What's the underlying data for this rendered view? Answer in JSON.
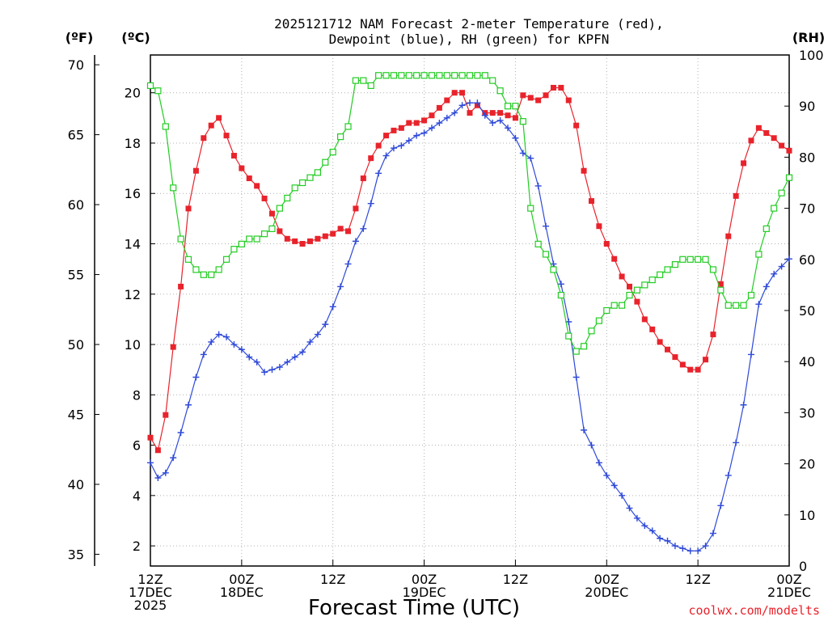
{
  "chart_data": {
    "type": "line",
    "title_line1": "2025121712 NAM Forecast 2-meter Temperature (red),",
    "title_line2": "Dewpoint (blue), RH (green) for KPFN",
    "xlabel": "Forecast Time (UTC)",
    "credit": "coolwx.com/modelts",
    "units": {
      "fahrenheit": "(ºF)",
      "celsius": "(ºC)",
      "rh": "(RH)"
    },
    "x_ticks": [
      {
        "hour": 0,
        "lines": [
          "12Z",
          "17DEC",
          "2025"
        ]
      },
      {
        "hour": 12,
        "lines": [
          "00Z",
          "18DEC"
        ]
      },
      {
        "hour": 24,
        "lines": [
          "12Z"
        ]
      },
      {
        "hour": 36,
        "lines": [
          "00Z",
          "19DEC"
        ]
      },
      {
        "hour": 48,
        "lines": [
          "12Z"
        ]
      },
      {
        "hour": 60,
        "lines": [
          "00Z",
          "20DEC"
        ]
      },
      {
        "hour": 72,
        "lines": [
          "12Z"
        ]
      },
      {
        "hour": 84,
        "lines": [
          "00Z",
          "21DEC"
        ]
      }
    ],
    "xlim": [
      0,
      84
    ],
    "celsius_axis": {
      "range": [
        1.2,
        21.5
      ],
      "ticks": [
        2,
        4,
        6,
        8,
        10,
        12,
        14,
        16,
        18,
        20
      ]
    },
    "fahrenheit_axis": {
      "range": [
        34.16,
        70.7
      ],
      "ticks": [
        35,
        40,
        45,
        50,
        55,
        60,
        65,
        70
      ]
    },
    "rh_axis": {
      "range": [
        0,
        100
      ],
      "ticks": [
        0,
        10,
        20,
        30,
        40,
        50,
        60,
        70,
        80,
        90,
        100
      ]
    },
    "hours": [
      0,
      1,
      2,
      3,
      4,
      5,
      6,
      7,
      8,
      9,
      10,
      11,
      12,
      13,
      14,
      15,
      16,
      17,
      18,
      19,
      20,
      21,
      22,
      23,
      24,
      25,
      26,
      27,
      28,
      29,
      30,
      31,
      32,
      33,
      34,
      35,
      36,
      37,
      38,
      39,
      40,
      41,
      42,
      43,
      44,
      45,
      46,
      47,
      48,
      49,
      50,
      51,
      52,
      53,
      54,
      55,
      56,
      57,
      58,
      59,
      60,
      61,
      62,
      63,
      64,
      65,
      66,
      67,
      68,
      69,
      70,
      71,
      72,
      73,
      74,
      75,
      76,
      77,
      78,
      79,
      80,
      81,
      82,
      83,
      84
    ],
    "series": [
      {
        "name": "Temperature",
        "unit": "C",
        "color": "#e8232b",
        "marker": "filled-square",
        "values": [
          6.3,
          5.8,
          7.2,
          9.9,
          12.3,
          15.4,
          16.9,
          18.2,
          18.7,
          19.0,
          18.3,
          17.5,
          17.0,
          16.6,
          16.3,
          15.8,
          15.2,
          14.5,
          14.2,
          14.1,
          14.0,
          14.1,
          14.2,
          14.3,
          14.4,
          14.6,
          14.5,
          15.4,
          16.6,
          17.4,
          17.9,
          18.3,
          18.5,
          18.6,
          18.8,
          18.8,
          18.9,
          19.1,
          19.4,
          19.7,
          20.0,
          20.0,
          19.2,
          19.5,
          19.2,
          19.2,
          19.2,
          19.1,
          19.0,
          19.9,
          19.8,
          19.7,
          19.9,
          20.2,
          20.2,
          19.7,
          18.7,
          16.9,
          15.7,
          14.7,
          14.0,
          13.4,
          12.7,
          12.3,
          11.7,
          11.0,
          10.6,
          10.1,
          9.8,
          9.5,
          9.2,
          9.0,
          9.0,
          9.4,
          10.4,
          12.4,
          14.3,
          15.9,
          17.2,
          18.1,
          18.6,
          18.4,
          18.2,
          17.9,
          17.7
        ]
      },
      {
        "name": "Dewpoint",
        "unit": "C",
        "color": "#2e49d8",
        "marker": "plus",
        "values": [
          5.3,
          4.7,
          4.9,
          5.5,
          6.5,
          7.6,
          8.7,
          9.6,
          10.1,
          10.4,
          10.3,
          10.0,
          9.8,
          9.5,
          9.3,
          8.9,
          9.0,
          9.1,
          9.3,
          9.5,
          9.7,
          10.1,
          10.4,
          10.8,
          11.5,
          12.3,
          13.2,
          14.1,
          14.6,
          15.6,
          16.8,
          17.5,
          17.8,
          17.9,
          18.1,
          18.3,
          18.4,
          18.6,
          18.8,
          19.0,
          19.2,
          19.5,
          19.6,
          19.6,
          19.1,
          18.8,
          18.9,
          18.6,
          18.2,
          17.6,
          17.4,
          16.3,
          14.7,
          13.2,
          12.4,
          10.9,
          8.7,
          6.6,
          6.0,
          5.3,
          4.8,
          4.4,
          4.0,
          3.5,
          3.1,
          2.8,
          2.6,
          2.3,
          2.2,
          2.0,
          1.9,
          1.8,
          1.8,
          2.0,
          2.5,
          3.6,
          4.8,
          6.1,
          7.6,
          9.6,
          11.6,
          12.3,
          12.8,
          13.1,
          13.4
        ]
      },
      {
        "name": "RH",
        "unit": "%",
        "color": "#22cc22",
        "marker": "open-square",
        "values": [
          94,
          93,
          86,
          74,
          64,
          60,
          58,
          57,
          57,
          58,
          60,
          62,
          63,
          64,
          64,
          65,
          66,
          70,
          72,
          74,
          75,
          76,
          77,
          79,
          81,
          84,
          86,
          95,
          95,
          94,
          96,
          96,
          96,
          96,
          96,
          96,
          96,
          96,
          96,
          96,
          96,
          96,
          96,
          96,
          96,
          95,
          93,
          90,
          90,
          87,
          70,
          63,
          61,
          58,
          53,
          45,
          42,
          43,
          46,
          48,
          50,
          51,
          51,
          53,
          54,
          55,
          56,
          57,
          58,
          59,
          60,
          60,
          60,
          60,
          58,
          54,
          51,
          51,
          51,
          53,
          61,
          66,
          70,
          73,
          76
        ]
      }
    ]
  }
}
